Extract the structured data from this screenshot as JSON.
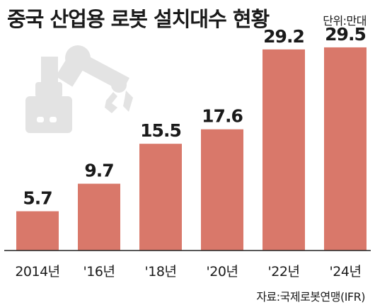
{
  "header": {
    "title": "중국 산업용 로봇 설치대수 현황",
    "unit": "단위:만대"
  },
  "footer": {
    "source": "자료:국제로봇연맹(IFR)"
  },
  "illustration": {
    "icon": "robot-arm-icon"
  },
  "colors": {
    "bar": "#d9786a",
    "icon": "#e3e3e3",
    "axis": "#222222"
  },
  "chart_data": {
    "type": "bar",
    "categories": [
      "2014년",
      "'16년",
      "'18년",
      "'20년",
      "'22년",
      "'24년"
    ],
    "values": [
      5.7,
      9.7,
      15.5,
      17.6,
      29.2,
      29.5
    ],
    "value_labels": [
      "5.7",
      "9.7",
      "15.5",
      "17.6",
      "29.2",
      "29.5"
    ],
    "title": "중국 산업용 로봇 설치대수 현황",
    "unit": "만대",
    "ylim": [
      0,
      33.5
    ],
    "grid": false,
    "legend": "none"
  }
}
